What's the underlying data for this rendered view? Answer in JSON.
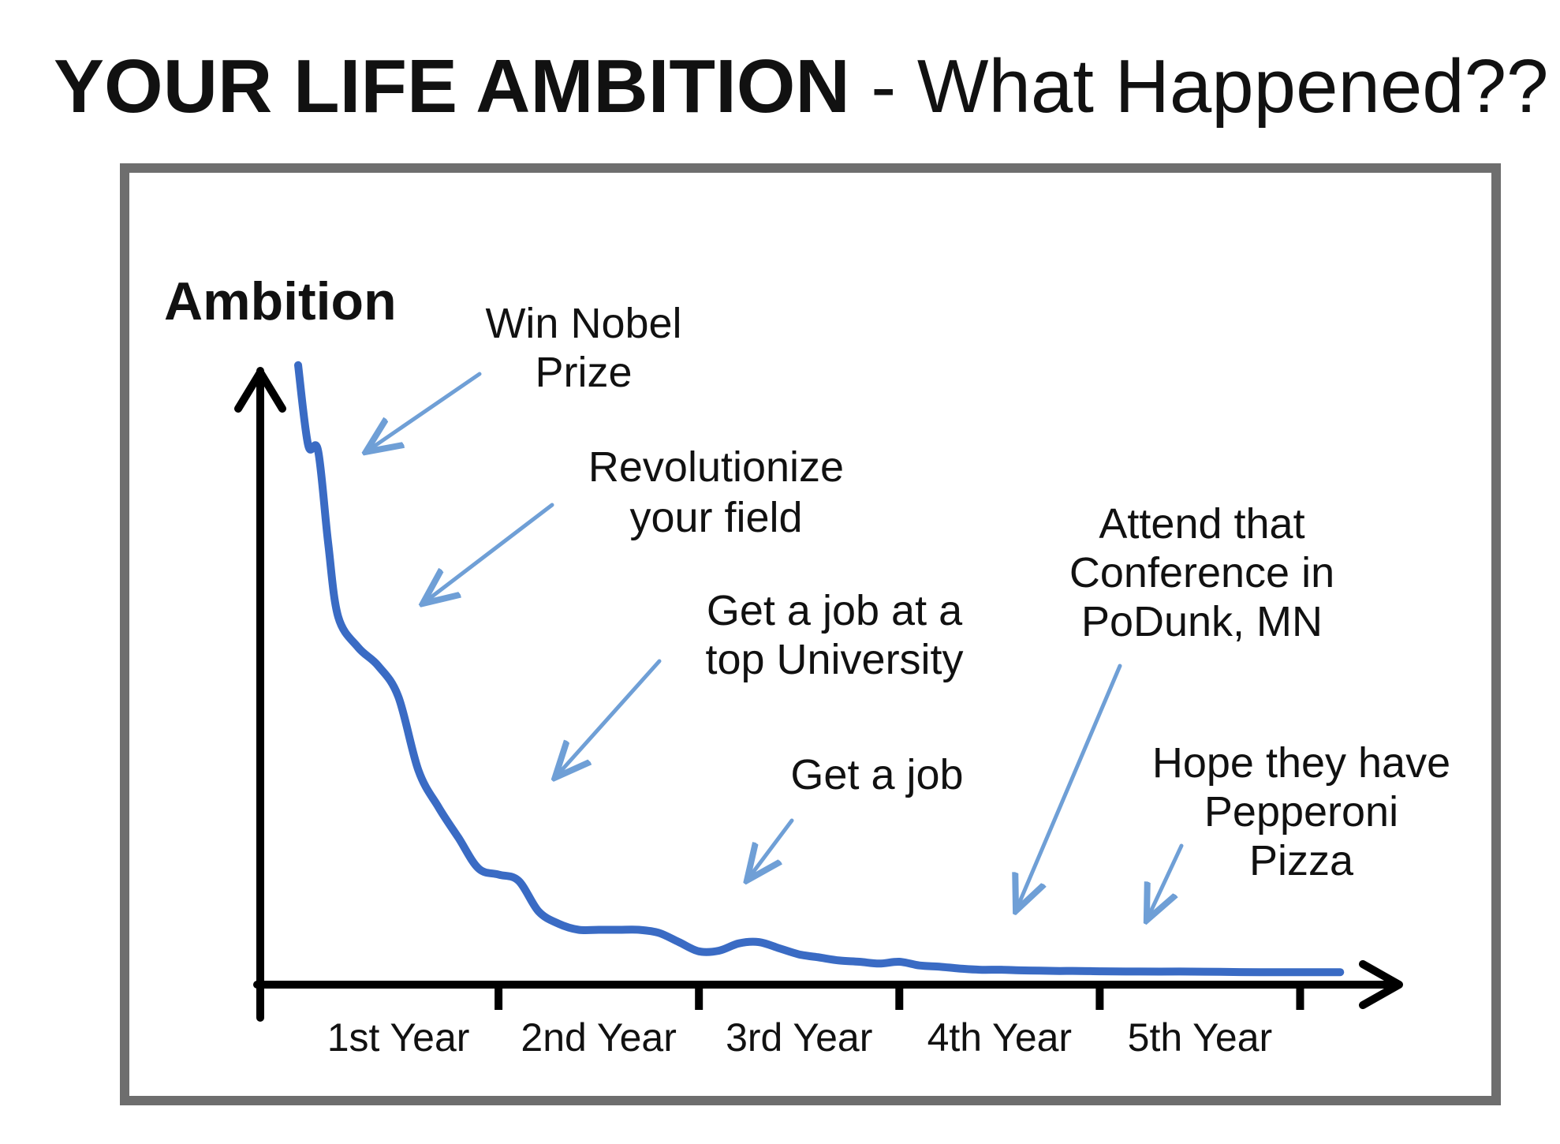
{
  "title": {
    "bold": "YOUR LIFE AMBITION",
    "normal": "- What Happened??"
  },
  "colors": {
    "curve": "#3a6bc4",
    "arrow": "#6f9fd6",
    "axis": "#000000",
    "frame": "#6e6e6e"
  },
  "chart_data": {
    "type": "line",
    "ylabel": "Ambition",
    "xlabel": "",
    "categories": [
      "1st Year",
      "2nd Year",
      "3rd Year",
      "4th Year",
      "5th Year"
    ],
    "xlim": [
      0,
      5.25
    ],
    "ylim": [
      0,
      100
    ],
    "grid": false,
    "legend": "none",
    "series": [
      {
        "x": [
          0.0,
          0.05,
          0.1,
          0.15,
          0.2,
          0.3,
          0.4,
          0.5,
          0.6,
          0.7,
          0.8,
          0.9,
          1.0,
          1.1,
          1.2,
          1.3,
          1.4,
          1.5,
          1.6,
          1.7,
          1.8,
          1.9,
          2.0,
          2.1,
          2.2,
          2.3,
          2.4,
          2.5,
          2.6,
          2.7,
          2.8,
          2.9,
          3.0,
          3.1,
          3.2,
          3.3,
          3.4,
          3.5,
          3.6,
          3.7,
          3.8,
          3.9,
          4.0,
          4.2,
          4.4,
          4.6,
          4.8,
          5.0,
          5.2
        ],
        "values": [
          99,
          86,
          85,
          70,
          58,
          53,
          50,
          45,
          33,
          27,
          22,
          17,
          16,
          15,
          10,
          8,
          7,
          7,
          7,
          7,
          6.5,
          5,
          3.5,
          3.6,
          4.8,
          5,
          4,
          3,
          2.5,
          2,
          1.8,
          1.5,
          1.8,
          1.2,
          1,
          0.7,
          0.5,
          0.5,
          0.4,
          0.35,
          0.3,
          0.3,
          0.25,
          0.2,
          0.2,
          0.15,
          0.1,
          0.1,
          0.1
        ]
      }
    ],
    "annotations": [
      {
        "lines": [
          "Win Nobel",
          "Prize"
        ],
        "x": 0.3,
        "y": 92
      },
      {
        "lines": [
          "Revolutionize",
          "your field"
        ],
        "x": 0.65,
        "y": 76
      },
      {
        "lines": [
          "Get a job at a",
          "top University"
        ],
        "x": 1.35,
        "y": 63
      },
      {
        "lines": [
          "Get a job"
        ],
        "x": 2.35,
        "y": 30
      },
      {
        "lines": [
          "Attend that",
          "Conference in",
          "PoDunk, MN"
        ],
        "x": 3.6,
        "y": 73
      },
      {
        "lines": [
          "Hope they have",
          "Pepperoni",
          "Pizza"
        ],
        "x": 4.8,
        "y": 38
      }
    ]
  }
}
